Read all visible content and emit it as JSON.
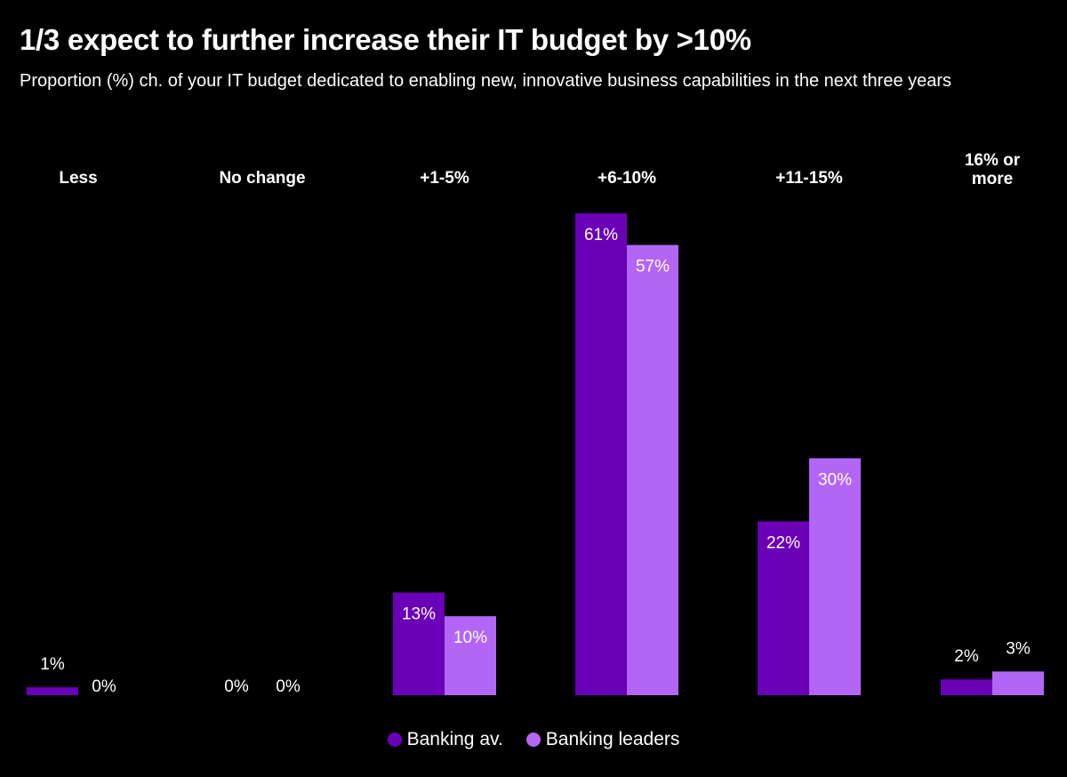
{
  "chart_data": {
    "type": "bar",
    "title": "1/3 expect to further increase their IT budget by >10%",
    "subtitle": "Proportion (%) ch. of your IT budget dedicated to enabling new, innovative business capabilities in the next three years",
    "categories": [
      "Less",
      "No change",
      "+1-5%",
      "+6-10%",
      "+11-15%",
      "16% or more"
    ],
    "series": [
      {
        "name": "Banking av.",
        "color": "#6a00b8",
        "values": [
          1,
          0,
          13,
          61,
          22,
          2
        ]
      },
      {
        "name": "Banking leaders",
        "color": "#b366f5",
        "values": [
          0,
          0,
          10,
          57,
          30,
          3
        ]
      }
    ],
    "labels": [
      [
        "1%",
        "0%",
        "13%",
        "61%",
        "22%",
        "2%"
      ],
      [
        "0%",
        "0%",
        "10%",
        "57%",
        "30%",
        "3%"
      ]
    ],
    "category_labels": [
      [
        "Less"
      ],
      [
        "No change"
      ],
      [
        "+1-5%"
      ],
      [
        "+6-10%"
      ],
      [
        "+11-15%"
      ],
      [
        "16% or",
        "more"
      ]
    ],
    "ylim": [
      0,
      61
    ],
    "legend_position": "bottom"
  }
}
